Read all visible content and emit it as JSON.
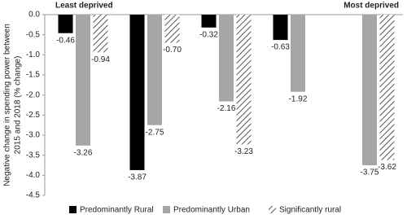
{
  "chart_data": {
    "type": "bar",
    "annotations": [
      "Least deprived",
      "Most deprived"
    ],
    "y_label": [
      "Negative change in spending power between",
      "2015 and 2018 (% change)"
    ],
    "categories": [
      null,
      null,
      null,
      null,
      null
    ],
    "series": [
      {
        "name": "Predominantly Rural",
        "color": "#000000",
        "values": [
          -0.46,
          -3.87,
          -0.32,
          -0.63,
          null
        ],
        "value_labels": [
          "-0.46",
          "-3.87",
          "-0.32",
          "-0.63",
          null
        ]
      },
      {
        "name": "Predominantly Urban",
        "color": "#a6a6a6",
        "values": [
          -3.26,
          -2.75,
          -2.16,
          -1.92,
          -3.75
        ],
        "value_labels": [
          "-3.26",
          "-2.75",
          "-2.16",
          "-1.92",
          "-3.75"
        ]
      },
      {
        "name": "Significantly rural",
        "color": "hatch",
        "values": [
          -0.94,
          -0.7,
          -3.23,
          null,
          -3.62
        ],
        "value_labels": [
          "-0.94",
          "-0.70",
          "-3.23",
          null,
          "-3.62"
        ]
      }
    ],
    "ylim": [
      -4.5,
      0
    ],
    "yticks": [
      {
        "value": 0,
        "label": "0.0"
      },
      -0.5,
      {
        "value": -1,
        "label": "-1.0"
      },
      -1.5,
      {
        "value": -2,
        "label": "-2.0"
      },
      -2.5,
      {
        "value": -3,
        "label": "-3.0"
      },
      -3.5,
      {
        "value": -4,
        "label": "-4.0"
      },
      -4.5
    ],
    "legend": "bottom"
  }
}
